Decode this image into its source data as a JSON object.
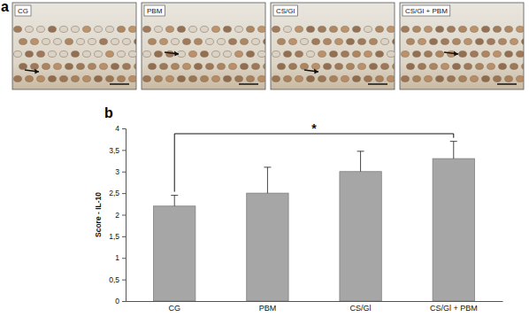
{
  "figure": {
    "panel_labels": [
      "a",
      "b"
    ],
    "micrographs": [
      "CG",
      "PBM",
      "CS/Gl",
      "CS/Gl + PBM"
    ]
  },
  "chart_data": {
    "type": "bar",
    "y_label": "Score - IL-10",
    "categories": [
      "CG",
      "PBM",
      "CS/Gl",
      "CS/Gl + PBM"
    ],
    "values": [
      2.2,
      2.5,
      3.0,
      3.3
    ],
    "errors": [
      0.25,
      0.6,
      0.47,
      0.4
    ],
    "color": "#a6a6a6",
    "ylim": [
      0,
      4
    ],
    "yticks": [
      0,
      {
        "value": 0.5,
        "label": "0,5"
      },
      1,
      {
        "value": 1.5,
        "label": "1,5"
      },
      2,
      {
        "value": 2.5,
        "label": "2,5"
      },
      3,
      {
        "value": 3.5,
        "label": "3,5"
      },
      4
    ],
    "annotations": [
      {
        "text": "*",
        "categories": [
          "CG",
          "CS/Gl + PBM"
        ]
      }
    ]
  }
}
